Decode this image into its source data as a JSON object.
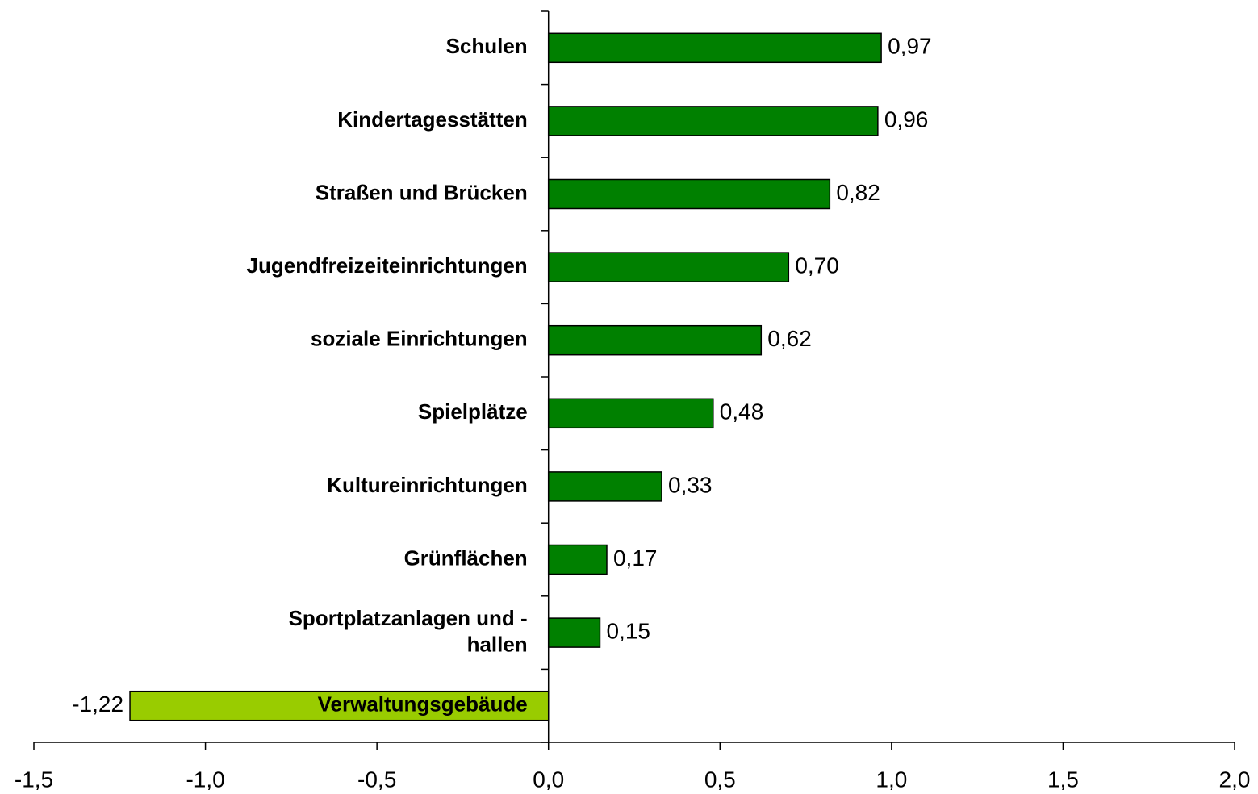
{
  "chart_data": {
    "type": "hbar",
    "categories": [
      "Schulen",
      "Kindertagesstätten",
      "Straßen und Brücken",
      "Jugendfreizeiteinrichtungen",
      "soziale Einrichtungen",
      "Spielplätze",
      "Kultureinrichtungen",
      "Grünflächen",
      "Sportplatzanlagen und -\nhallen",
      "Verwaltungsgebäude"
    ],
    "values": [
      0.97,
      0.96,
      0.82,
      0.7,
      0.62,
      0.48,
      0.33,
      0.17,
      0.15,
      -1.22
    ],
    "value_labels": [
      "0,97",
      "0,96",
      "0,82",
      "0,70",
      "0,62",
      "0,48",
      "0,33",
      "0,17",
      "0,15",
      "-1,22"
    ],
    "colors": [
      "#008000",
      "#008000",
      "#008000",
      "#008000",
      "#008000",
      "#008000",
      "#008000",
      "#008000",
      "#008000",
      "#99cc00"
    ],
    "xlim": [
      -1.5,
      2.0
    ],
    "xticks": [
      {
        "value": -1.5,
        "label": "-1,5"
      },
      {
        "value": -1.0,
        "label": "-1,0"
      },
      {
        "value": -0.5,
        "label": "-0,5"
      },
      {
        "value": 0.0,
        "label": "0,0"
      },
      {
        "value": 0.5,
        "label": "0,5"
      },
      {
        "value": 1.0,
        "label": "1,0"
      },
      {
        "value": 1.5,
        "label": "1,5"
      },
      {
        "value": 2.0,
        "label": "2,0"
      }
    ],
    "grid": false
  }
}
